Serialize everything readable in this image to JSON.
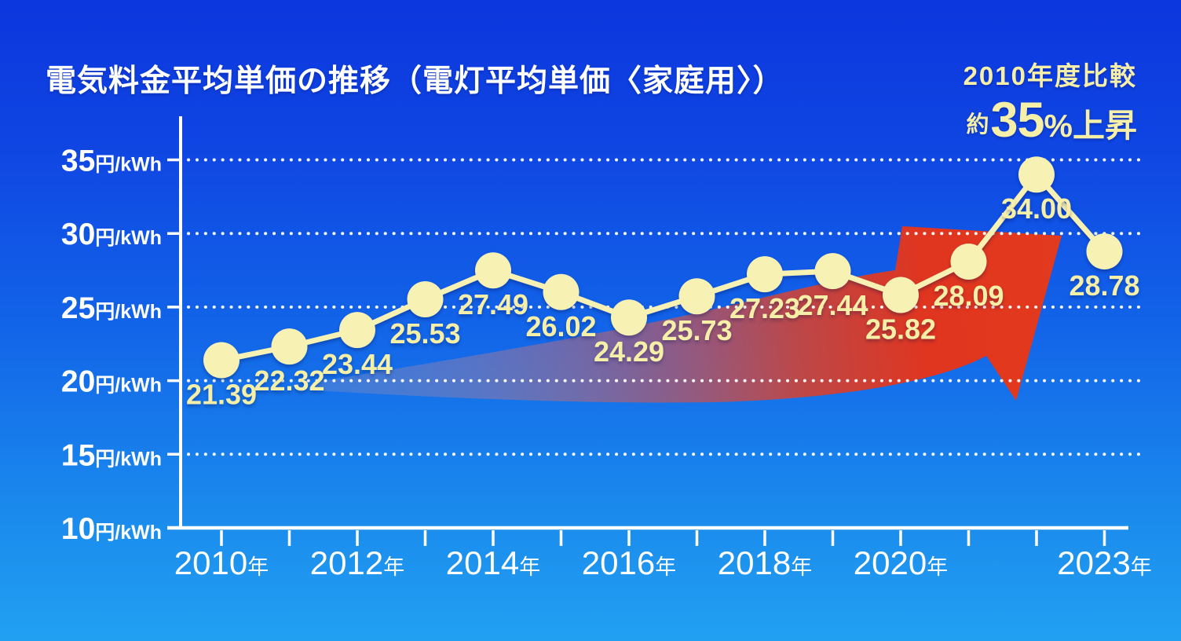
{
  "title": "電気料金平均単価の推移（電灯平均単価〈家庭用〉）",
  "callout": {
    "line1": "2010年度比較",
    "approx": "約",
    "percent_value": "35",
    "percent_suffix": "%上昇"
  },
  "chart_data": {
    "type": "line",
    "title": "電気料金平均単価の推移（電灯平均単価〈家庭用〉）",
    "years": [
      2010,
      2011,
      2012,
      2013,
      2014,
      2015,
      2016,
      2017,
      2018,
      2019,
      2020,
      2021,
      2022,
      2023
    ],
    "values": [
      21.39,
      22.32,
      23.44,
      25.53,
      27.49,
      26.02,
      24.29,
      25.73,
      27.23,
      27.44,
      25.82,
      28.09,
      34.0,
      28.78
    ],
    "value_label_decimals": 2,
    "labeled_years": [
      2010,
      2012,
      2014,
      2016,
      2018,
      2020,
      2023
    ],
    "x_unit_suffix": "年",
    "y_ticks": [
      10,
      15,
      20,
      25,
      30,
      35
    ],
    "y_unit_suffix": "円/kWh",
    "ylim": [
      10,
      38
    ],
    "grid": "dotted-horizontal-white",
    "legend": "none",
    "annotation": "2010年度比較 約35%上昇",
    "colors": {
      "background_top": "#0c36de",
      "background_bottom": "#21a0f2",
      "series": "#f8f1b4",
      "value_labels": "#f6efa8",
      "axis": "#ffffff",
      "trend_arrow": "#e0331f",
      "trend_arrow_tail": "#8e96c0"
    }
  }
}
